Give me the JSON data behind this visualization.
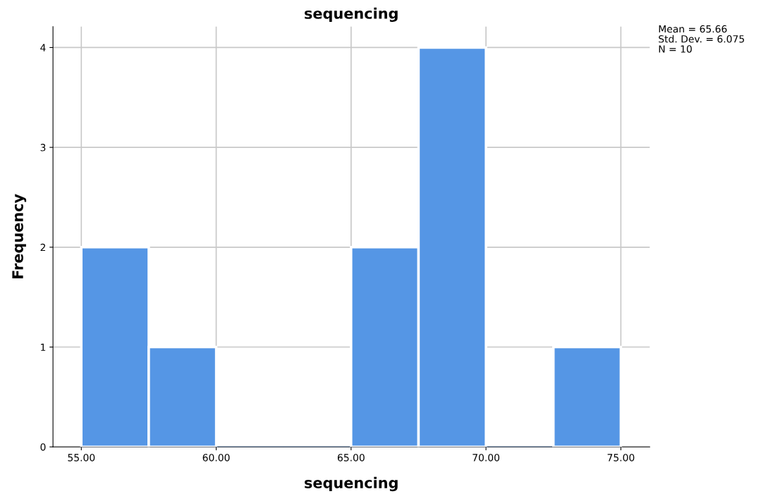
{
  "chart_data": {
    "type": "histogram",
    "title": "sequencing",
    "xlabel": "sequencing",
    "ylabel": "Frequency",
    "bins": [
      55,
      57.5,
      60,
      62.5,
      65,
      67.5,
      70,
      72.5,
      75
    ],
    "values": [
      2,
      1,
      0,
      0,
      2,
      4,
      0,
      1
    ],
    "color": "#5596e5",
    "xlim": [
      53.95,
      76.07
    ],
    "xticks": [
      {
        "value": 55,
        "label": "55.00"
      },
      {
        "value": 60,
        "label": "60.00"
      },
      {
        "value": 65,
        "label": "65.00"
      },
      {
        "value": 70,
        "label": "70.00"
      },
      {
        "value": 75,
        "label": "75.00"
      }
    ],
    "ylim": [
      0,
      4.21
    ],
    "yticks": [
      0,
      1,
      2,
      3,
      4
    ],
    "grid": true,
    "annotations": [
      "Mean = 65.66",
      "Std. Dev. = 6.075",
      "N = 10"
    ]
  }
}
